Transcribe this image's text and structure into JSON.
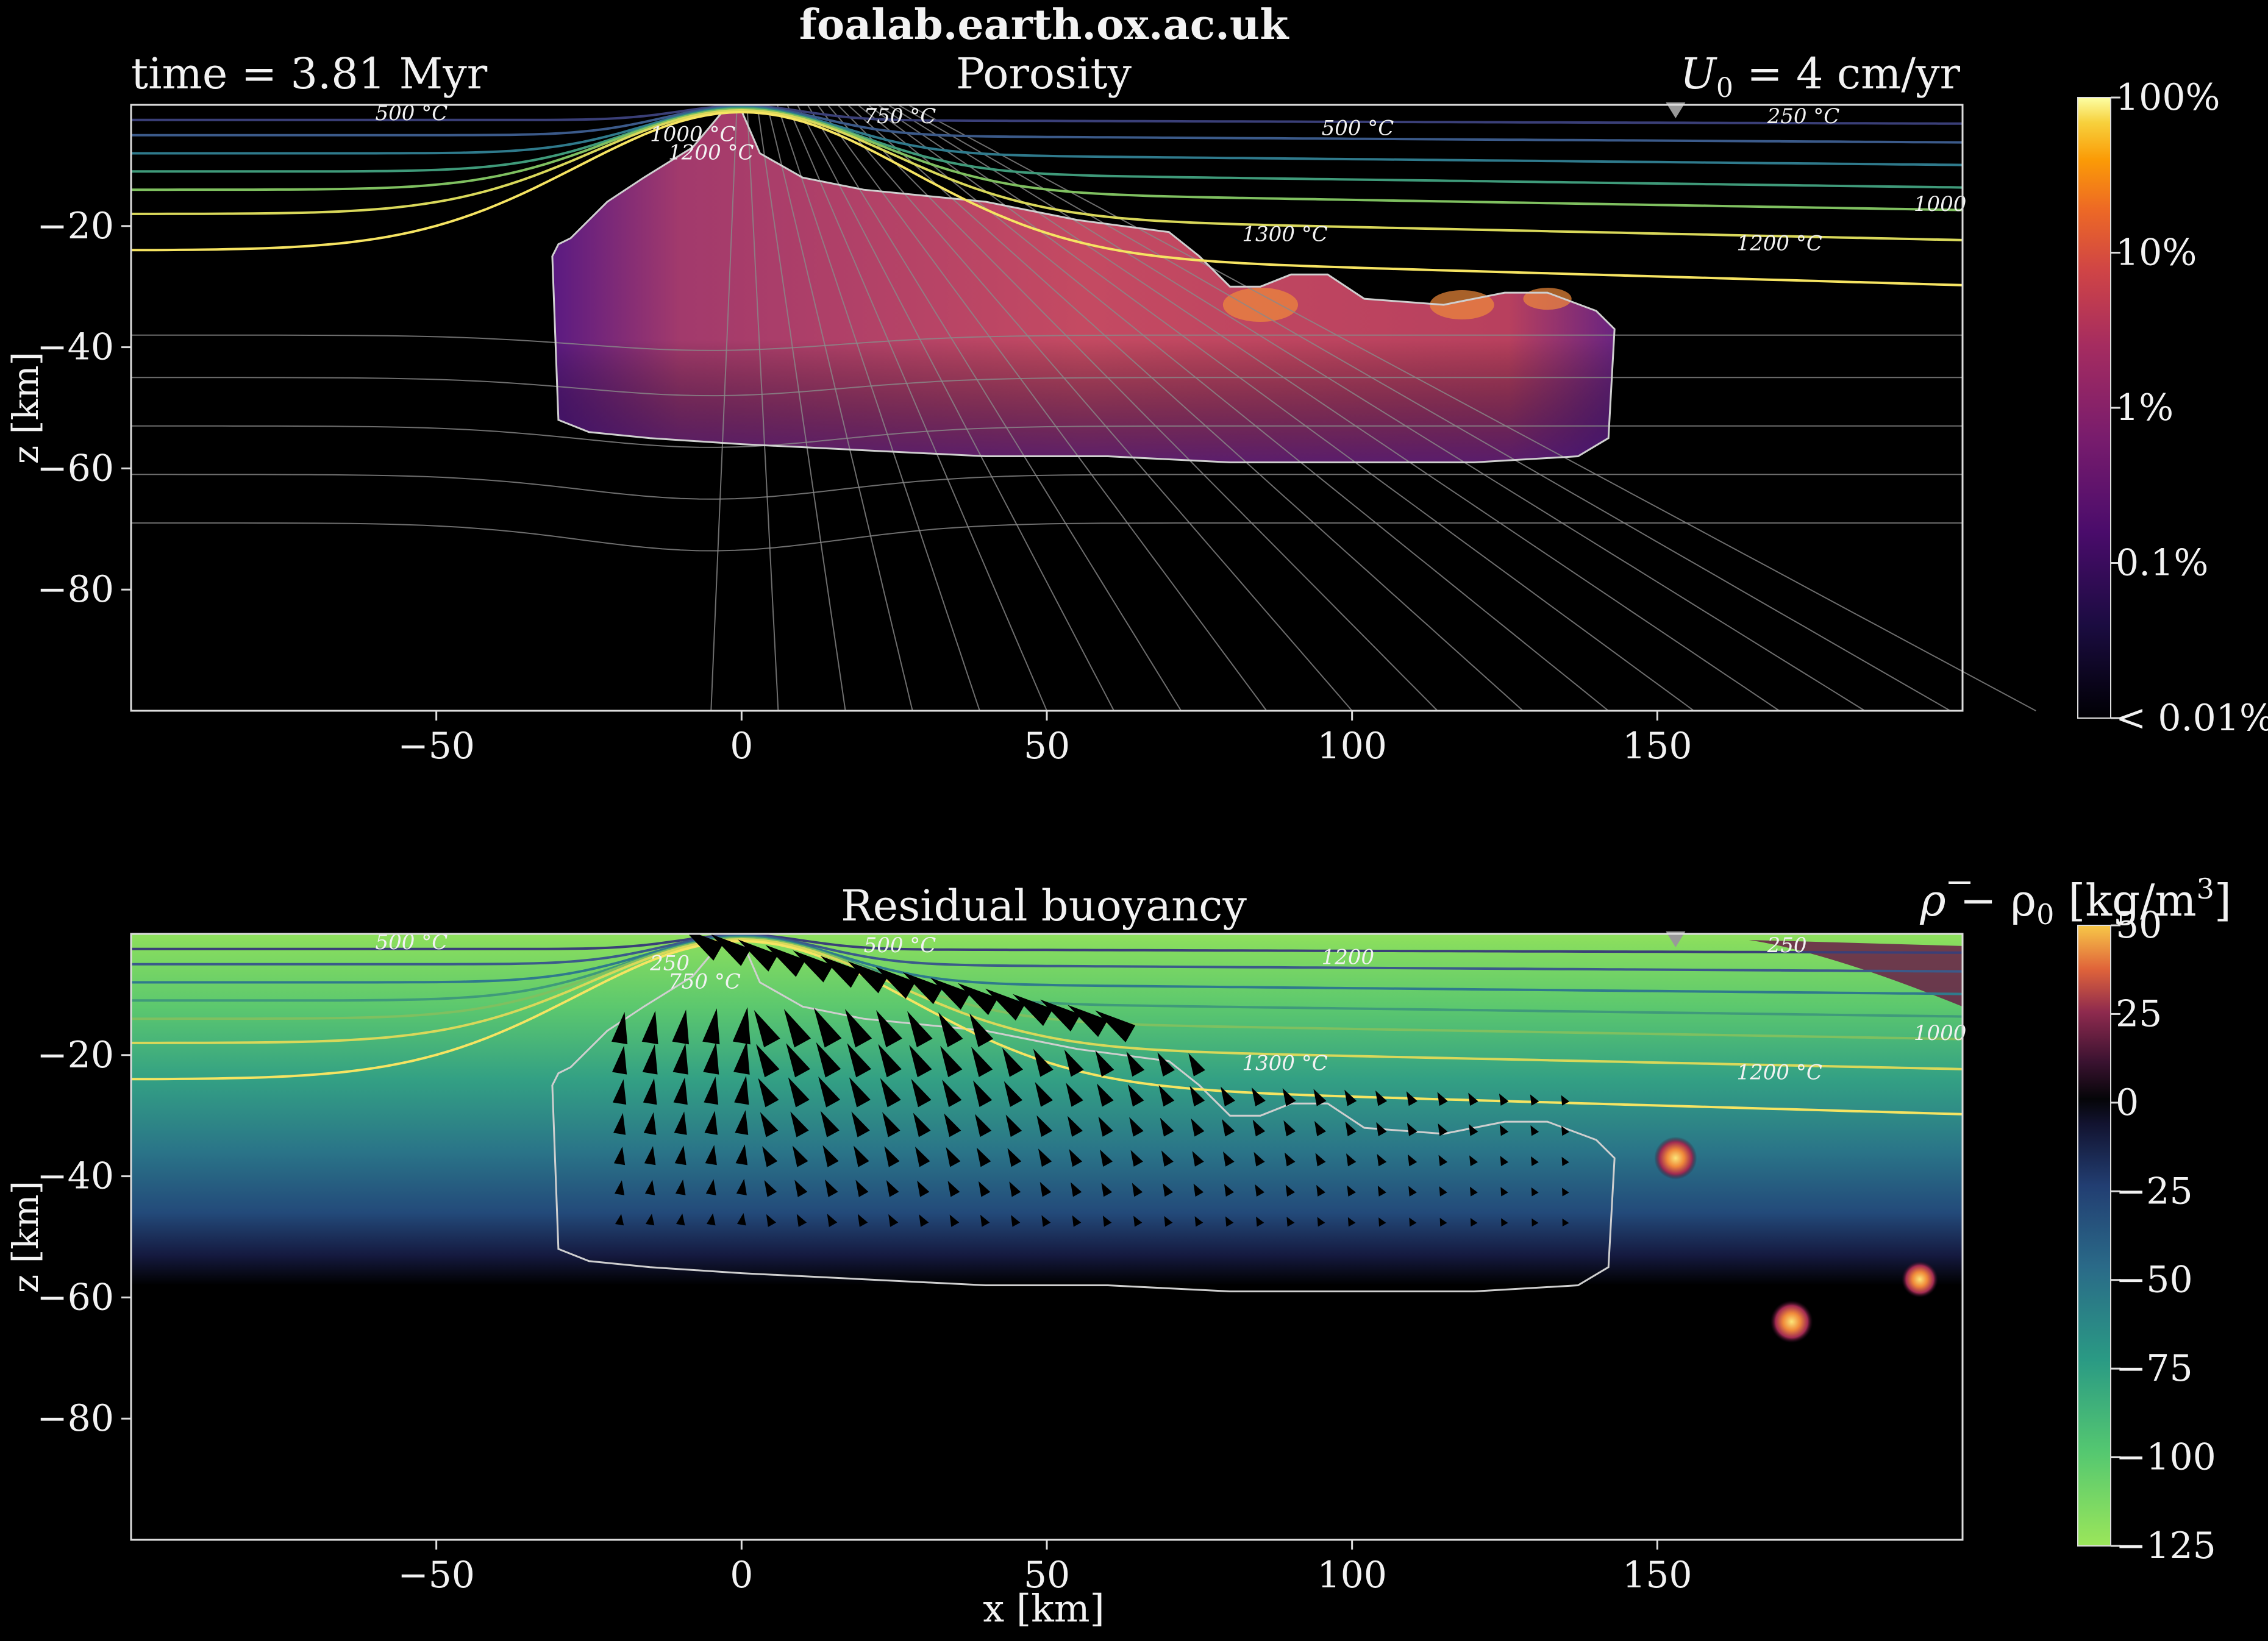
{
  "header": {
    "site": "foalab.earth.ox.ac.uk",
    "time_label": "time = 3.81 Myr",
    "velocity_label": "U",
    "velocity_sub": "0",
    "velocity_value": " = 4 cm/yr"
  },
  "chart_data": [
    {
      "type": "heatmap",
      "title": "Porosity",
      "xlabel": "",
      "ylabel": "z [km]",
      "xlim": [
        -100,
        200
      ],
      "ylim": [
        -100,
        0
      ],
      "xticks": [
        -50,
        0,
        50,
        100,
        150
      ],
      "yticks": [
        -20,
        -40,
        -60,
        -80
      ],
      "xtick_labels": [
        "−50",
        "0",
        "50",
        "100",
        "150"
      ],
      "ytick_labels": [
        "−20",
        "−40",
        "−60",
        "−80"
      ],
      "colorbar": {
        "scale": "log",
        "ticks": [
          "100%",
          "10%",
          "1%",
          "0.1%",
          "< 0.01%"
        ],
        "tick_values": [
          100,
          10,
          1,
          0.1,
          0.01
        ]
      },
      "isotherm_labels": [
        "500 °C",
        "1000 °C",
        "1200 °C",
        "750 °C",
        "500 °C",
        "250 °C",
        "1300 °C",
        "1200 °C",
        "1000"
      ],
      "trench_marker_x": 153,
      "melt_region_km": {
        "outline": [
          [
            -30,
            -23
          ],
          [
            -28,
            -22
          ],
          [
            -22,
            -16
          ],
          [
            -16,
            -12
          ],
          [
            -8,
            -7
          ],
          [
            -3,
            -1
          ],
          [
            0,
            -1
          ],
          [
            3,
            -8
          ],
          [
            10,
            -12
          ],
          [
            20,
            -14
          ],
          [
            30,
            -15
          ],
          [
            40,
            -16
          ],
          [
            55,
            -19
          ],
          [
            70,
            -21
          ],
          [
            75,
            -25
          ],
          [
            80,
            -30
          ],
          [
            85,
            -30
          ],
          [
            90,
            -28
          ],
          [
            96,
            -28
          ],
          [
            102,
            -32
          ],
          [
            115,
            -33
          ],
          [
            125,
            -31
          ],
          [
            132,
            -31
          ],
          [
            140,
            -34
          ],
          [
            143,
            -37
          ],
          [
            142,
            -55
          ],
          [
            137,
            -58
          ],
          [
            120,
            -59
          ],
          [
            100,
            -59
          ],
          [
            80,
            -59
          ],
          [
            60,
            -58
          ],
          [
            40,
            -58
          ],
          [
            20,
            -57
          ],
          [
            0,
            -56
          ],
          [
            -15,
            -55
          ],
          [
            -25,
            -54
          ],
          [
            -30,
            -52
          ],
          [
            -31,
            -25
          ]
        ]
      }
    },
    {
      "type": "heatmap",
      "title": "Residual buoyancy",
      "xlabel": "x [km]",
      "ylabel": "z [km]",
      "xlim": [
        -100,
        200
      ],
      "ylim": [
        -100,
        0
      ],
      "xticks": [
        -50,
        0,
        50,
        100,
        150
      ],
      "yticks": [
        -20,
        -40,
        -60,
        -80
      ],
      "xtick_labels": [
        "−50",
        "0",
        "50",
        "100",
        "150"
      ],
      "ytick_labels": [
        "−20",
        "−40",
        "−60",
        "−80"
      ],
      "colorbar": {
        "label_rho": "ρ",
        "label_rest": " − ρ",
        "label_sub": "0",
        "label_units": " [kg/m",
        "label_sup": "3",
        "label_close": "]",
        "ticks": [
          "50",
          "25",
          "0",
          "−25",
          "−50",
          "−75",
          "−100",
          "−125"
        ],
        "tick_values": [
          50,
          25,
          0,
          -25,
          -50,
          -75,
          -100,
          -125
        ],
        "range": [
          -125,
          50
        ]
      },
      "isotherm_labels": [
        "500 °C",
        "250",
        "750 °C",
        "500 °C",
        "1200",
        "250",
        "1300 °C",
        "1200 °C",
        "1000"
      ],
      "trench_marker_x": 153,
      "hot_blobs_km": [
        [
          153,
          -37,
          35
        ],
        [
          193,
          -57,
          30
        ],
        [
          172,
          -64,
          35
        ]
      ]
    }
  ],
  "colors": {
    "background": "#000000",
    "axes": "#dddddd",
    "isotherm_hot": "#f6e462",
    "isotherm_cool": "#3b5a8a",
    "melt_high": "#c85060",
    "melt_low": "#4c1c7a",
    "buoyancy_light": "#8de05c",
    "buoyancy_mid": "#2e6e84",
    "buoyancy_dark": "#14163a"
  }
}
